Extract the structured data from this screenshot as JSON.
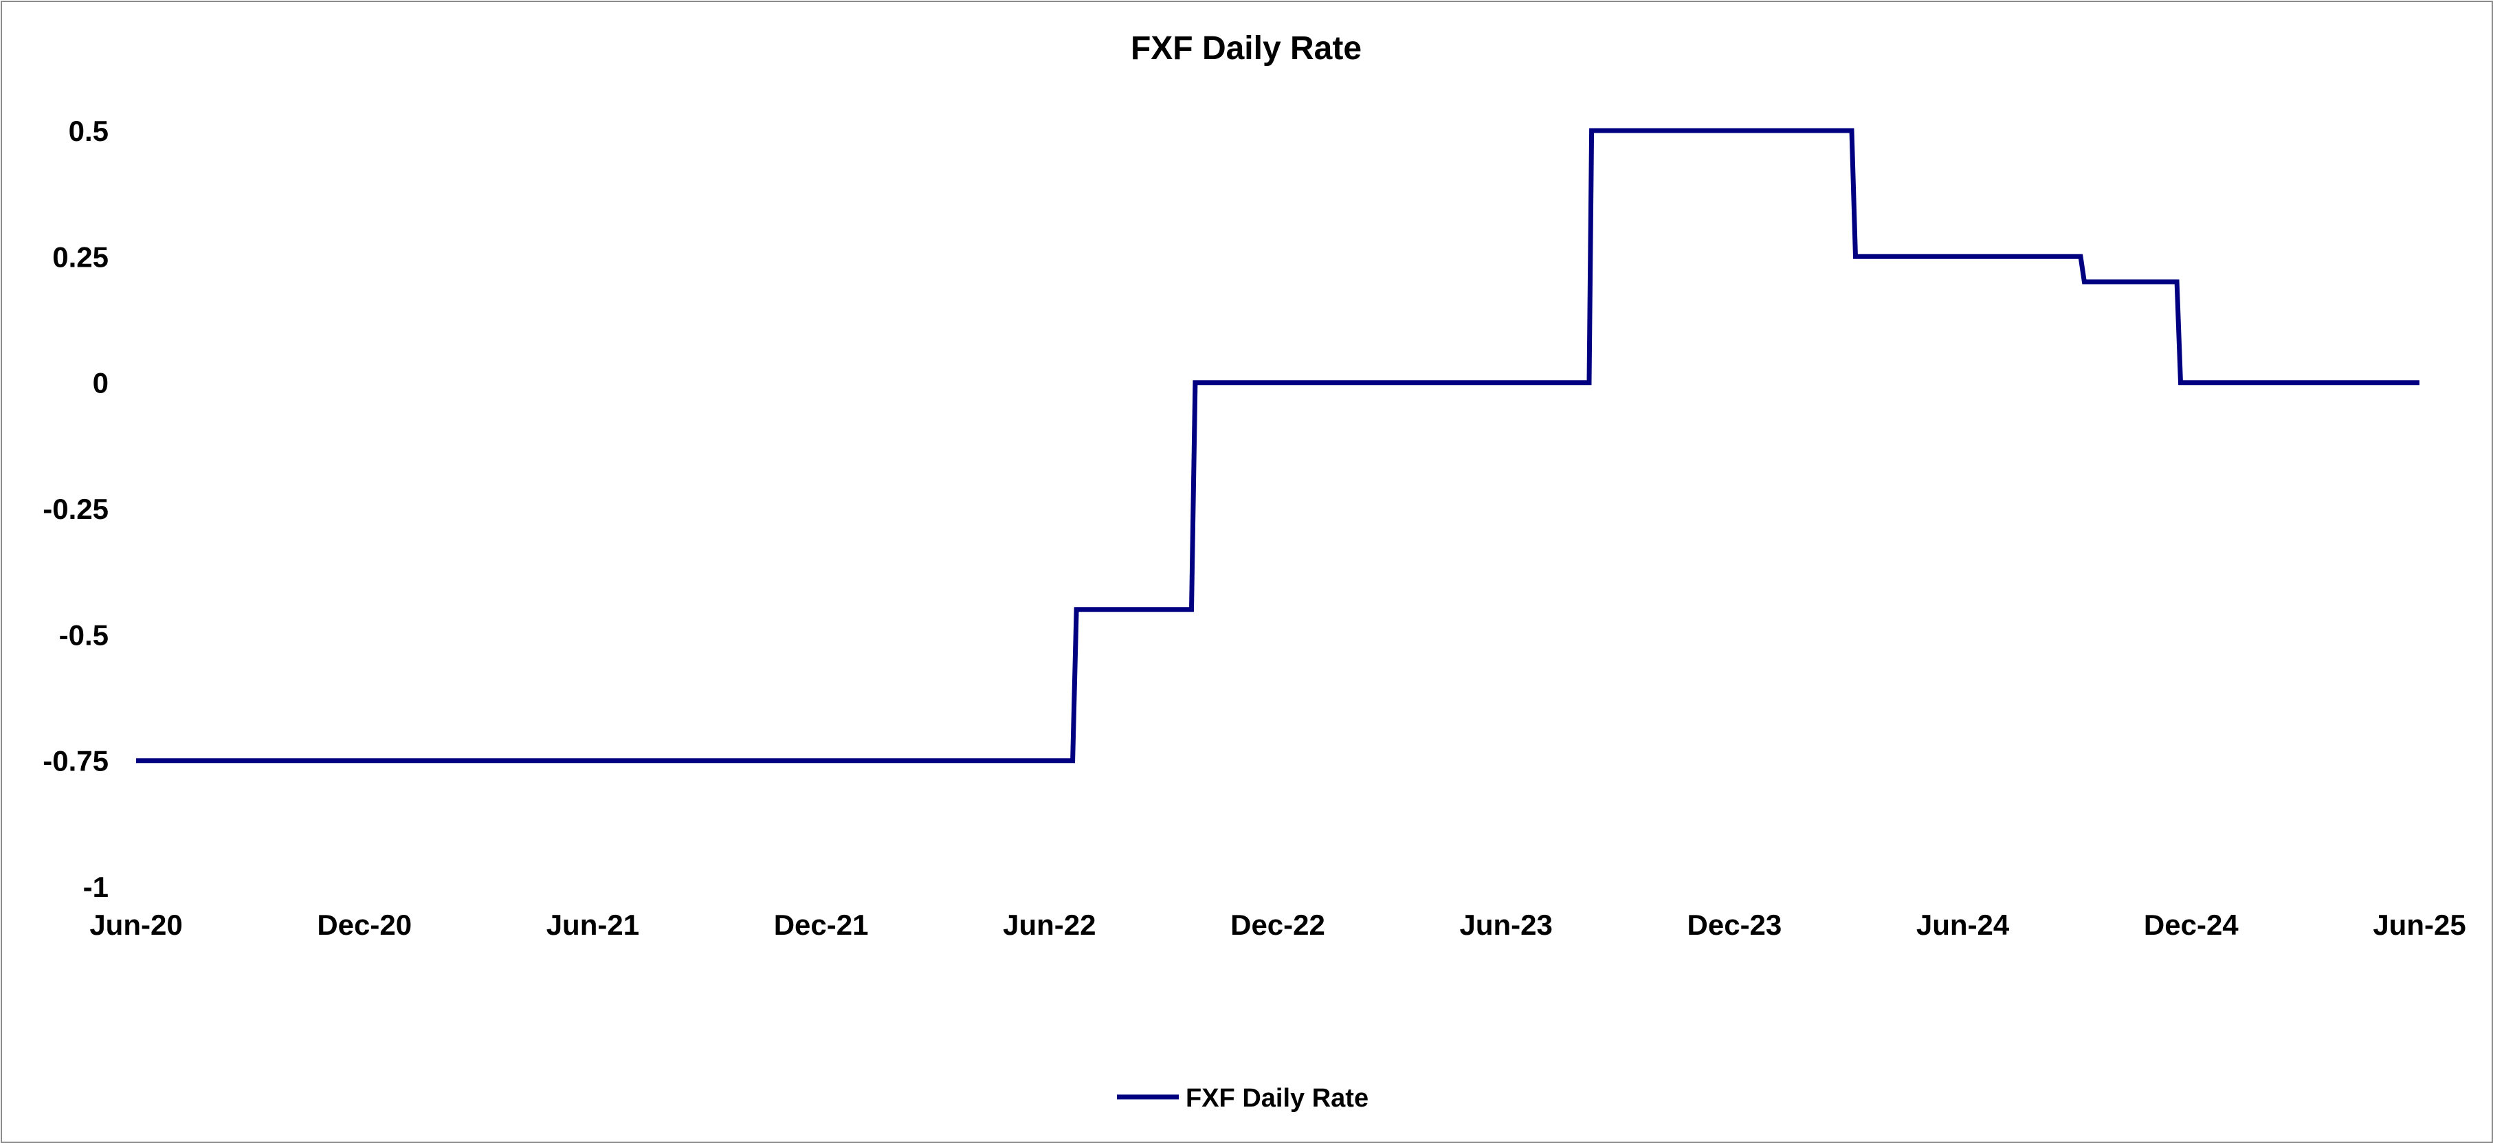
{
  "chart_data": {
    "type": "line",
    "title": "FXF Daily Rate",
    "xlabel": "",
    "ylabel": "",
    "xlim": [
      "2020-06-01",
      "2025-06-01"
    ],
    "ylim": [
      -1,
      0.5
    ],
    "x_ticks": [
      "Jun-20",
      "Dec-20",
      "Jun-21",
      "Dec-21",
      "Jun-22",
      "Dec-22",
      "Jun-23",
      "Dec-23",
      "Jun-24",
      "Dec-24",
      "Jun-25"
    ],
    "y_ticks": [
      "0.5",
      "0.25",
      "0",
      "-0.25",
      "-0.5",
      "-0.75",
      "-1"
    ],
    "grid": false,
    "legend": "bottom",
    "step": true,
    "series": [
      {
        "name": "FXF Daily Rate",
        "color": "#000080",
        "points": [
          {
            "x": "2020-06-01",
            "y": -0.75
          },
          {
            "x": "2022-06-20",
            "y": -0.75
          },
          {
            "x": "2022-06-23",
            "y": -0.45
          },
          {
            "x": "2022-09-23",
            "y": -0.45
          },
          {
            "x": "2022-09-26",
            "y": 0
          },
          {
            "x": "2023-08-07",
            "y": 0
          },
          {
            "x": "2023-08-09",
            "y": 0.5
          },
          {
            "x": "2024-03-04",
            "y": 0.5
          },
          {
            "x": "2024-03-07",
            "y": 0.25
          },
          {
            "x": "2024-09-03",
            "y": 0.25
          },
          {
            "x": "2024-09-06",
            "y": 0.2
          },
          {
            "x": "2024-11-19",
            "y": 0.2
          },
          {
            "x": "2024-11-22",
            "y": 0
          },
          {
            "x": "2025-06-01",
            "y": 0
          }
        ]
      }
    ]
  }
}
